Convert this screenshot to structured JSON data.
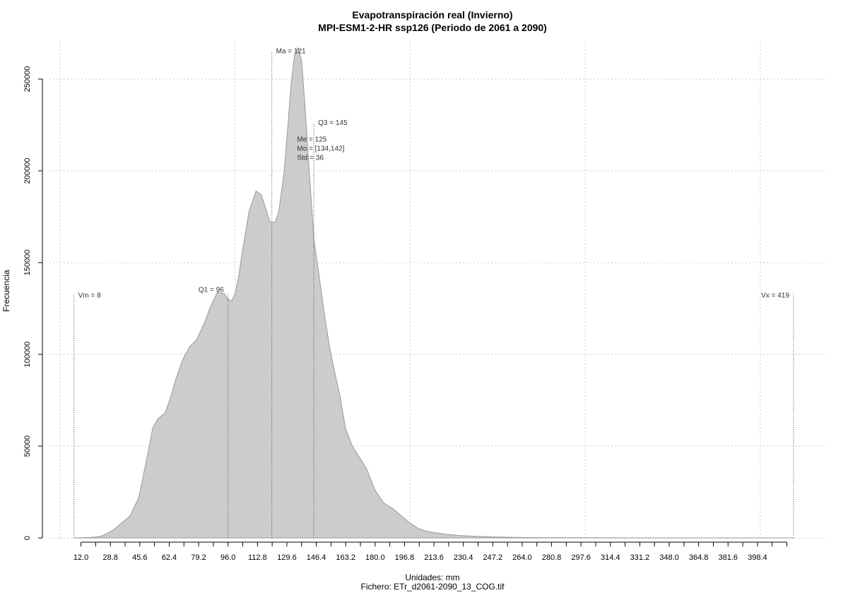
{
  "chart_data": {
    "type": "area",
    "title": "Evapotranspiración real (Invierno)",
    "subtitle": "MPI-ESM1-2-HR ssp126 (Periodo de 2061 a 2090)",
    "xlabel": "Unidades: mm",
    "ylabel": "Frecuencia",
    "caption": "Fichero: ETr_d2061-2090_13_COG.tif",
    "xlim": [
      -6,
      438
    ],
    "ylim": [
      0,
      270000
    ],
    "grid": true,
    "fill_color": "#cccccc",
    "stroke_color": "#999999",
    "x_ticks": [
      12.0,
      28.8,
      45.6,
      62.4,
      79.2,
      96.0,
      112.8,
      129.6,
      146.4,
      163.2,
      180.0,
      196.8,
      213.6,
      230.4,
      247.2,
      264.0,
      280.8,
      297.6,
      314.4,
      331.2,
      348.0,
      364.8,
      381.6,
      398.4
    ],
    "x_tick_labels": [
      "12.0",
      "28.8",
      "45.6",
      "62.4",
      "79.2",
      "96.0",
      "112.8",
      "129.6",
      "146.4",
      "163.2",
      "180.0",
      "196.8",
      "213.6",
      "230.4",
      "247.2",
      "264.0",
      "280.8",
      "297.6",
      "314.4",
      "331.2",
      "348.0",
      "364.8",
      "381.6",
      "398.4"
    ],
    "y_ticks": [
      0,
      50000,
      100000,
      150000,
      200000,
      250000
    ],
    "y_tick_labels": [
      "0",
      "50000",
      "100000",
      "150000",
      "200000",
      "250000"
    ],
    "x_grid": [
      0,
      100,
      200,
      300,
      400
    ],
    "series": [
      {
        "x": [
          8,
          12,
          18,
          22,
          25,
          30,
          35,
          40,
          45,
          50,
          53,
          56,
          60,
          63,
          66,
          70,
          74,
          78,
          82,
          86,
          90,
          94,
          96,
          98,
          100,
          102,
          104,
          108,
          112,
          115,
          117,
          120,
          123,
          125,
          128,
          130,
          132,
          134,
          136,
          138,
          140,
          142,
          145,
          148,
          151,
          154,
          157,
          160,
          163,
          167,
          171,
          175,
          180,
          185,
          190,
          195,
          200,
          205,
          210,
          220,
          230,
          240,
          250,
          260,
          275,
          300,
          350,
          419
        ],
        "y": [
          0,
          100,
          300,
          700,
          1500,
          4000,
          8000,
          12000,
          22000,
          45000,
          60000,
          65000,
          68000,
          76000,
          86000,
          97000,
          104000,
          108000,
          116000,
          126000,
          134000,
          133000,
          130000,
          129000,
          133000,
          142000,
          155000,
          178000,
          189000,
          187000,
          181000,
          172000,
          172000,
          178000,
          199000,
          222000,
          247000,
          263000,
          267000,
          260000,
          235000,
          205000,
          163000,
          143000,
          122000,
          104000,
          90000,
          77000,
          60000,
          50000,
          44000,
          38000,
          26000,
          19000,
          16000,
          12000,
          8000,
          5000,
          3500,
          2000,
          1200,
          800,
          500,
          300,
          150,
          60,
          20,
          0
        ]
      }
    ],
    "stat_lines": [
      {
        "x": 8,
        "top": 133000
      },
      {
        "x": 96,
        "top": 133000
      },
      {
        "x": 121,
        "top": 265000
      },
      {
        "x": 145,
        "top": 226000
      },
      {
        "x": 419,
        "top": 133000
      }
    ],
    "annotations": [
      {
        "text": "Vm = 8",
        "x": 8,
        "y": 131000,
        "anchor": "start"
      },
      {
        "text": "Q1 = 96",
        "x": 96,
        "y": 134000,
        "anchor": "end"
      },
      {
        "text": "Ma = 121",
        "x": 121,
        "y": 264000,
        "anchor": "start"
      },
      {
        "text": "Q3 = 145",
        "x": 145,
        "y": 225000,
        "anchor": "start"
      },
      {
        "text": "Me = 125",
        "x": 133,
        "y": 216000,
        "anchor": "start"
      },
      {
        "text": "Mo = [134,142]",
        "x": 133,
        "y": 211000,
        "anchor": "start"
      },
      {
        "text": "Std = 36",
        "x": 133,
        "y": 206000,
        "anchor": "start"
      },
      {
        "text": "Vx = 419",
        "x": 419,
        "y": 131000,
        "anchor": "end"
      }
    ]
  }
}
